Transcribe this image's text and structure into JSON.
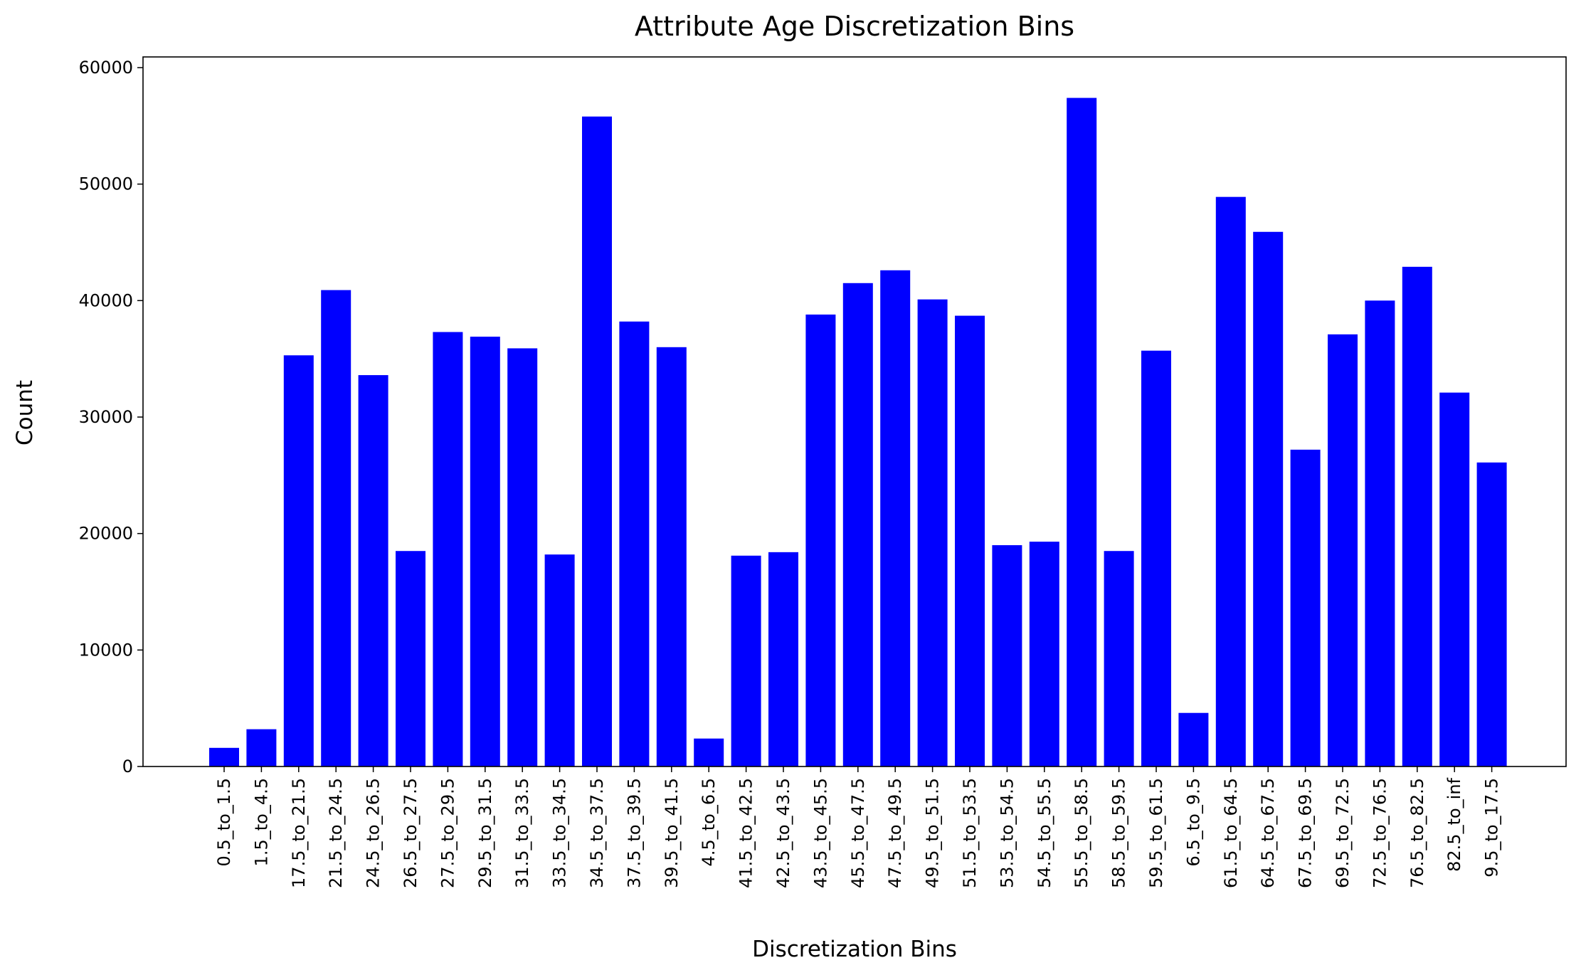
{
  "chart_data": {
    "type": "bar",
    "title": "Attribute Age Discretization Bins",
    "xlabel": "Discretization Bins",
    "ylabel": "Count",
    "ylim": [
      0,
      60000
    ],
    "yticks": [
      "0",
      "10000",
      "20000",
      "30000",
      "40000",
      "50000",
      "60000"
    ],
    "grid": false,
    "legend": "none",
    "bar_color": "#0000ff",
    "categories": [
      "0.5_to_1.5",
      "1.5_to_4.5",
      "17.5_to_21.5",
      "21.5_to_24.5",
      "24.5_to_26.5",
      "26.5_to_27.5",
      "27.5_to_29.5",
      "29.5_to_31.5",
      "31.5_to_33.5",
      "33.5_to_34.5",
      "34.5_to_37.5",
      "37.5_to_39.5",
      "39.5_to_41.5",
      "4.5_to_6.5",
      "41.5_to_42.5",
      "42.5_to_43.5",
      "43.5_to_45.5",
      "45.5_to_47.5",
      "47.5_to_49.5",
      "49.5_to_51.5",
      "51.5_to_53.5",
      "53.5_to_54.5",
      "54.5_to_55.5",
      "55.5_to_58.5",
      "58.5_to_59.5",
      "59.5_to_61.5",
      "6.5_to_9.5",
      "61.5_to_64.5",
      "64.5_to_67.5",
      "67.5_to_69.5",
      "69.5_to_72.5",
      "72.5_to_76.5",
      "76.5_to_82.5",
      "82.5_to_inf",
      "9.5_to_17.5"
    ],
    "values": [
      1600,
      3200,
      35300,
      40900,
      33600,
      18500,
      37300,
      36900,
      35900,
      18200,
      55800,
      38200,
      36000,
      2400,
      18100,
      18400,
      38800,
      41500,
      42600,
      40100,
      38700,
      19000,
      19300,
      57400,
      18500,
      35700,
      4600,
      48900,
      45900,
      27200,
      37100,
      40000,
      42900,
      32100,
      26100
    ]
  }
}
